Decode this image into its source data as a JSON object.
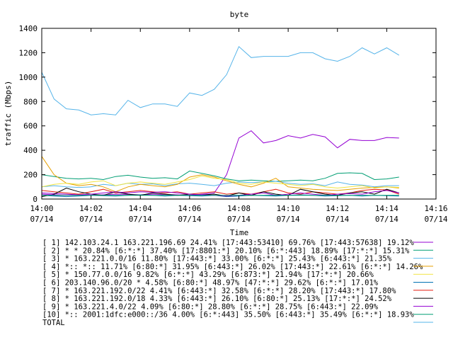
{
  "chart_data": {
    "type": "line",
    "title": "byte",
    "xlabel": "Time",
    "ylabel": "traffic (Mbps)",
    "xlim": [
      0,
      16
    ],
    "ylim": [
      0,
      1400
    ],
    "x_ticks": [
      {
        "x": 0,
        "time": "14:00",
        "date": "07/14"
      },
      {
        "x": 2,
        "time": "14:02",
        "date": "07/14"
      },
      {
        "x": 4,
        "time": "14:04",
        "date": "07/14"
      },
      {
        "x": 6,
        "time": "14:06",
        "date": "07/14"
      },
      {
        "x": 8,
        "time": "14:08",
        "date": "07/14"
      },
      {
        "x": 10,
        "time": "14:10",
        "date": "07/14"
      },
      {
        "x": 12,
        "time": "14:12",
        "date": "07/14"
      },
      {
        "x": 14,
        "time": "14:14",
        "date": "07/14"
      },
      {
        "x": 16,
        "time": "14:16",
        "date": "07/14"
      }
    ],
    "y_ticks": [
      0,
      200,
      400,
      600,
      800,
      1000,
      1200,
      1400
    ],
    "grid": false,
    "legend_position": "bottom",
    "x": [
      0,
      0.5,
      1,
      1.5,
      2,
      2.5,
      3,
      3.5,
      4,
      4.5,
      5,
      5.5,
      6,
      6.5,
      7,
      7.5,
      8,
      8.5,
      9,
      9.5,
      10,
      10.5,
      11,
      11.5,
      12,
      12.5,
      13,
      13.5,
      14,
      14.5
    ],
    "series": [
      {
        "name": "[ 1] 142.103.24.1 163.221.196.69 24.41%  [17:443:53410] 69.76% [17:443:57638] 19.12%",
        "color": "#9400d3",
        "values": [
          50,
          45,
          40,
          35,
          30,
          35,
          40,
          38,
          35,
          40,
          38,
          35,
          30,
          40,
          50,
          200,
          500,
          560,
          460,
          480,
          520,
          500,
          530,
          510,
          420,
          490,
          480,
          480,
          505,
          500
        ]
      },
      {
        "name": "[ 2] * * 20.84%  [6:*:*] 37.40% [17:8801:*] 20.10% [6:*:443] 18.89% [17:*:*] 15.31%",
        "color": "#009e73",
        "values": [
          200,
          185,
          170,
          165,
          170,
          160,
          185,
          195,
          180,
          170,
          175,
          165,
          230,
          210,
          190,
          165,
          150,
          155,
          150,
          145,
          150,
          155,
          150,
          170,
          210,
          215,
          210,
          160,
          165,
          180
        ]
      },
      {
        "name": "[ 3] * 163.221.0.0/16 11.80%  [17:443:*] 33.00% [6:*:*] 25.43% [6:443:*] 21.35%",
        "color": "#56b4e9",
        "values": [
          100,
          110,
          100,
          95,
          100,
          120,
          110,
          130,
          120,
          125,
          110,
          125,
          130,
          120,
          110,
          130,
          140,
          135,
          140,
          145,
          130,
          120,
          125,
          110,
          140,
          120,
          115,
          100,
          110,
          110
        ]
      },
      {
        "name": "[ 4] *:: *:: 11.71%  [6:80:*] 31.95% [6:443:*] 26.02% [17:443:*] 22.61% [6:*:*] 14.26%",
        "color": "#e69f00",
        "values": [
          350,
          200,
          130,
          110,
          120,
          100,
          60,
          100,
          120,
          110,
          100,
          120,
          180,
          200,
          180,
          150,
          120,
          100,
          130,
          170,
          100,
          90,
          80,
          75,
          70,
          80,
          90,
          95,
          100,
          90
        ]
      },
      {
        "name": "[ 5] * 150.77.0.0/16 9.82%  [6:*:*] 43.29% [6:873:*] 21.94% [17:*:*] 20.66%",
        "color": "#f0e442",
        "values": [
          100,
          120,
          130,
          120,
          140,
          150,
          110,
          130,
          140,
          130,
          120,
          140,
          160,
          190,
          170,
          160,
          130,
          120,
          140,
          130,
          120,
          110,
          120,
          100,
          90,
          100,
          110,
          90,
          100,
          95
        ]
      },
      {
        "name": "[ 6] 203.140.96.0/20 * 4.58%  [6:80:*] 48.97% [47:*:*] 29.62% [6:*:*] 17.01%",
        "color": "#0072b2",
        "values": [
          30,
          25,
          20,
          25,
          30,
          28,
          25,
          30,
          35,
          30,
          25,
          30,
          28,
          25,
          30,
          20,
          25,
          30,
          28,
          25,
          30,
          35,
          30,
          25,
          28,
          30,
          25,
          30,
          28,
          25
        ]
      },
      {
        "name": "[ 7] * 163.221.192.0/22 4.41%  [6:443:*] 32.58% [6:*:*] 28.20% [17:443:*] 17.80%",
        "color": "#e51e10",
        "values": [
          70,
          60,
          50,
          40,
          60,
          80,
          50,
          60,
          70,
          60,
          50,
          60,
          40,
          50,
          60,
          40,
          50,
          40,
          60,
          80,
          50,
          40,
          60,
          50,
          40,
          50,
          70,
          80,
          75,
          40
        ]
      },
      {
        "name": "[ 8] * 163.221.192.0/18 4.33%  [6:443:*] 26.10% [6:80:*] 25.13% [17:*:*] 24.52%",
        "color": "#000000",
        "values": [
          20,
          40,
          90,
          60,
          40,
          30,
          60,
          40,
          30,
          50,
          40,
          30,
          40,
          35,
          40,
          25,
          50,
          30,
          60,
          40,
          30,
          80,
          60,
          40,
          30,
          50,
          60,
          40,
          80,
          50
        ]
      },
      {
        "name": "[ 9] * 163.221.4.0/22 4.09%  [6:80:*] 28.80% [6:*:*] 28.75% [6:443:*] 22.09%",
        "color": "#9400d3",
        "values": [
          40,
          35,
          30,
          35,
          40,
          50,
          60,
          50,
          60,
          55,
          60,
          50,
          40,
          35,
          30,
          25,
          30,
          40,
          50,
          30,
          40,
          50,
          40,
          30,
          40,
          45,
          40,
          60,
          70,
          50
        ]
      },
      {
        "name": "[10] *:: 2001:1dfc:e000::/36 4.00%  [6:*:443] 35.50% [6:443:*] 35.49% [6:*:*] 18.93%",
        "color": "#009e73",
        "values": [
          30,
          30,
          30,
          30,
          30,
          30,
          30,
          30,
          30,
          30,
          30,
          30,
          30,
          30,
          30,
          30,
          30,
          30,
          30,
          30,
          30,
          30,
          30,
          30,
          30,
          30,
          30,
          30,
          30,
          30
        ]
      },
      {
        "name": "TOTAL",
        "color": "#56b4e9",
        "values": [
          1040,
          820,
          740,
          730,
          690,
          700,
          690,
          810,
          750,
          780,
          780,
          760,
          870,
          850,
          900,
          1020,
          1250,
          1160,
          1170,
          1170,
          1170,
          1200,
          1200,
          1150,
          1130,
          1170,
          1240,
          1190,
          1240,
          1180
        ]
      }
    ]
  }
}
